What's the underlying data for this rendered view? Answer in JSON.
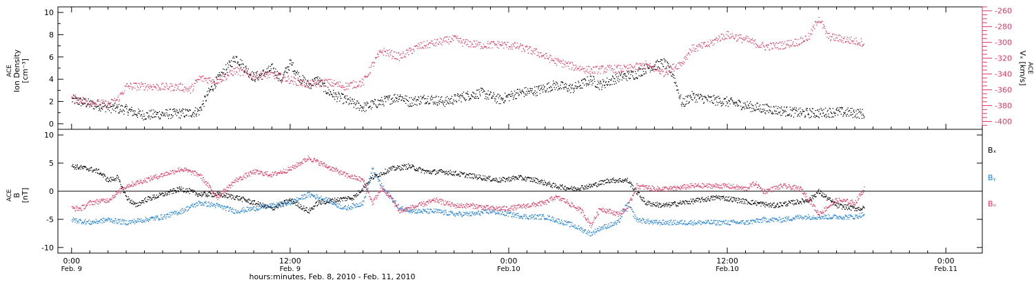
{
  "chart_data": [
    {
      "type": "scatter",
      "panel": "top",
      "ylabel_left_lines": [
        "ACE",
        "Ion Density",
        "[cm⁻³]"
      ],
      "ylabel_right_lines": [
        "ACE",
        "Vₓ [km/s]"
      ],
      "ylim_left": [
        -0.5,
        10.5
      ],
      "ylim_right": [
        -410,
        -255
      ],
      "yticks_left": [
        0,
        2,
        4,
        6,
        8,
        10
      ],
      "yticks_right": [
        -260,
        -280,
        -300,
        -320,
        -340,
        -360,
        -380,
        -400
      ],
      "series": [
        {
          "name": "Ion Density",
          "axis": "left",
          "color": "#000000",
          "points": [
            [
              0,
              2.2
            ],
            [
              2,
              1.8
            ],
            [
              4,
              1.5
            ],
            [
              6,
              1.3
            ],
            [
              7,
              1.0
            ],
            [
              8,
              0.8
            ],
            [
              10,
              0.9
            ],
            [
              13,
              1.0
            ],
            [
              14,
              1.2
            ],
            [
              15,
              2.8
            ],
            [
              16,
              4.0
            ],
            [
              17,
              5.0
            ],
            [
              18,
              6.0
            ],
            [
              19,
              5.0
            ],
            [
              20,
              4.2
            ],
            [
              21,
              4.5
            ],
            [
              22,
              5.0
            ],
            [
              23,
              4.0
            ],
            [
              24,
              5.5
            ],
            [
              25,
              4.2
            ],
            [
              26,
              3.5
            ],
            [
              27,
              4.0
            ],
            [
              28,
              3.0
            ],
            [
              29,
              2.5
            ],
            [
              30,
              2.2
            ],
            [
              31,
              1.8
            ],
            [
              32,
              1.5
            ],
            [
              34,
              2.0
            ],
            [
              36,
              2.5
            ],
            [
              37,
              2.0
            ],
            [
              39,
              2.3
            ],
            [
              41,
              2.0
            ],
            [
              43,
              2.5
            ],
            [
              45,
              2.8
            ],
            [
              47,
              2.2
            ],
            [
              49,
              2.8
            ],
            [
              51,
              3.0
            ],
            [
              53,
              3.5
            ],
            [
              55,
              3.2
            ],
            [
              57,
              4.0
            ],
            [
              58,
              3.5
            ],
            [
              60,
              4.2
            ],
            [
              62,
              4.5
            ],
            [
              63,
              5.0
            ],
            [
              65,
              5.5
            ],
            [
              66,
              4.5
            ],
            [
              67,
              1.8
            ],
            [
              68,
              2.5
            ],
            [
              70,
              2.2
            ],
            [
              72,
              2.0
            ],
            [
              75,
              1.5
            ],
            [
              78,
              1.2
            ],
            [
              80,
              1.0
            ],
            [
              82,
              1.0
            ],
            [
              84,
              1.1
            ],
            [
              86,
              1.0
            ],
            [
              87,
              0.9
            ]
          ]
        },
        {
          "name": "Vx",
          "axis": "right",
          "color": "#e0365f",
          "points": [
            [
              0,
              -370
            ],
            [
              2,
              -375
            ],
            [
              4,
              -378
            ],
            [
              5,
              -372
            ],
            [
              6,
              -355
            ],
            [
              8,
              -355
            ],
            [
              10,
              -356
            ],
            [
              12,
              -356
            ],
            [
              13,
              -360
            ],
            [
              14,
              -345
            ],
            [
              16,
              -348
            ],
            [
              18,
              -335
            ],
            [
              20,
              -342
            ],
            [
              22,
              -340
            ],
            [
              24,
              -347
            ],
            [
              26,
              -353
            ],
            [
              28,
              -350
            ],
            [
              30,
              -355
            ],
            [
              32,
              -350
            ],
            [
              33,
              -328
            ],
            [
              34,
              -310
            ],
            [
              36,
              -318
            ],
            [
              38,
              -305
            ],
            [
              40,
              -300
            ],
            [
              42,
              -295
            ],
            [
              43,
              -300
            ],
            [
              45,
              -303
            ],
            [
              47,
              -302
            ],
            [
              49,
              -305
            ],
            [
              51,
              -312
            ],
            [
              53,
              -323
            ],
            [
              55,
              -330
            ],
            [
              57,
              -335
            ],
            [
              59,
              -333
            ],
            [
              61,
              -333
            ],
            [
              63,
              -328
            ],
            [
              65,
              -338
            ],
            [
              67,
              -325
            ],
            [
              68,
              -308
            ],
            [
              70,
              -302
            ],
            [
              71,
              -294
            ],
            [
              72,
              -290
            ],
            [
              74,
              -296
            ],
            [
              76,
              -305
            ],
            [
              78,
              -303
            ],
            [
              80,
              -298
            ],
            [
              81,
              -292
            ],
            [
              82,
              -268
            ],
            [
              83,
              -292
            ],
            [
              85,
              -296
            ],
            [
              87,
              -300
            ]
          ]
        }
      ]
    },
    {
      "type": "scatter",
      "panel": "bottom",
      "ylabel_left_lines": [
        "ACE",
        "B",
        "[nT]"
      ],
      "ylim": [
        -11,
        11
      ],
      "yticks": [
        -10,
        -5,
        0,
        5,
        10
      ],
      "legend_position": "right",
      "legend_entries": [
        "Bₓ",
        "Bᵧ",
        "Bᵤ"
      ],
      "series": [
        {
          "name": "Bx",
          "color": "#000000",
          "points": [
            [
              0,
              4.5
            ],
            [
              2,
              4.0
            ],
            [
              3,
              3.5
            ],
            [
              4,
              2.0
            ],
            [
              5,
              2.5
            ],
            [
              6,
              -1.0
            ],
            [
              7,
              -2.5
            ],
            [
              8,
              -1.5
            ],
            [
              10,
              -0.5
            ],
            [
              12,
              0.5
            ],
            [
              14,
              -0.5
            ],
            [
              16,
              -0.5
            ],
            [
              18,
              -1.0
            ],
            [
              20,
              -2.0
            ],
            [
              22,
              -3.0
            ],
            [
              24,
              -1.5
            ],
            [
              26,
              -3.5
            ],
            [
              27,
              -2.0
            ],
            [
              29,
              -1.5
            ],
            [
              31,
              -1.0
            ],
            [
              33,
              2.5
            ],
            [
              35,
              4.0
            ],
            [
              37,
              4.5
            ],
            [
              39,
              3.5
            ],
            [
              41,
              3.5
            ],
            [
              43,
              3.0
            ],
            [
              45,
              2.5
            ],
            [
              47,
              2.0
            ],
            [
              49,
              2.5
            ],
            [
              51,
              2.0
            ],
            [
              53,
              1.0
            ],
            [
              55,
              0.5
            ],
            [
              57,
              1.0
            ],
            [
              59,
              2.0
            ],
            [
              61,
              2.0
            ],
            [
              62,
              0.0
            ],
            [
              63,
              -2.0
            ],
            [
              65,
              -2.5
            ],
            [
              67,
              -2.0
            ],
            [
              69,
              -1.5
            ],
            [
              71,
              -1.0
            ],
            [
              73,
              -1.5
            ],
            [
              75,
              -2.0
            ],
            [
              77,
              -2.5
            ],
            [
              79,
              -2.0
            ],
            [
              81,
              -1.5
            ],
            [
              82,
              0.0
            ],
            [
              84,
              -2.5
            ],
            [
              86,
              -3.0
            ],
            [
              87,
              -3.0
            ]
          ]
        },
        {
          "name": "By",
          "color": "#1e7fd6",
          "points": [
            [
              0,
              -5.0
            ],
            [
              2,
              -5.5
            ],
            [
              4,
              -5.0
            ],
            [
              6,
              -5.5
            ],
            [
              8,
              -5.0
            ],
            [
              10,
              -4.5
            ],
            [
              12,
              -3.5
            ],
            [
              14,
              -2.0
            ],
            [
              16,
              -2.5
            ],
            [
              18,
              -3.5
            ],
            [
              20,
              -3.0
            ],
            [
              22,
              -2.5
            ],
            [
              24,
              -2.0
            ],
            [
              26,
              -0.5
            ],
            [
              28,
              -1.5
            ],
            [
              30,
              -3.0
            ],
            [
              32,
              -2.0
            ],
            [
              33,
              4.0
            ],
            [
              34,
              1.0
            ],
            [
              36,
              -3.0
            ],
            [
              38,
              -3.5
            ],
            [
              40,
              -3.5
            ],
            [
              42,
              -4.0
            ],
            [
              44,
              -4.0
            ],
            [
              46,
              -3.5
            ],
            [
              48,
              -4.0
            ],
            [
              50,
              -4.5
            ],
            [
              52,
              -4.5
            ],
            [
              54,
              -5.5
            ],
            [
              55,
              -6.0
            ],
            [
              57,
              -7.5
            ],
            [
              58,
              -6.5
            ],
            [
              60,
              -5.5
            ],
            [
              61,
              -2.0
            ],
            [
              62,
              -5.0
            ],
            [
              64,
              -5.5
            ],
            [
              66,
              -5.5
            ],
            [
              68,
              -5.5
            ],
            [
              70,
              -5.5
            ],
            [
              72,
              -5.5
            ],
            [
              74,
              -5.5
            ],
            [
              76,
              -5.0
            ],
            [
              78,
              -5.0
            ],
            [
              80,
              -4.5
            ],
            [
              82,
              -4.5
            ],
            [
              84,
              -4.5
            ],
            [
              86,
              -4.5
            ],
            [
              87,
              -4.0
            ]
          ]
        },
        {
          "name": "Bz",
          "color": "#e0365f",
          "points": [
            [
              0,
              -3.0
            ],
            [
              1,
              -3.0
            ],
            [
              2,
              -2.0
            ],
            [
              4,
              -1.5
            ],
            [
              6,
              1.0
            ],
            [
              8,
              2.0
            ],
            [
              10,
              3.0
            ],
            [
              12,
              4.0
            ],
            [
              14,
              3.0
            ],
            [
              15,
              1.0
            ],
            [
              16,
              -1.0
            ],
            [
              17,
              0.5
            ],
            [
              18,
              2.0
            ],
            [
              20,
              3.5
            ],
            [
              22,
              3.0
            ],
            [
              24,
              4.0
            ],
            [
              26,
              6.0
            ],
            [
              28,
              4.5
            ],
            [
              30,
              3.0
            ],
            [
              32,
              2.0
            ],
            [
              33,
              -2.0
            ],
            [
              34,
              0.5
            ],
            [
              35,
              -1.0
            ],
            [
              36,
              -3.5
            ],
            [
              38,
              -2.5
            ],
            [
              40,
              -1.5
            ],
            [
              42,
              -2.5
            ],
            [
              44,
              -2.5
            ],
            [
              46,
              -3.0
            ],
            [
              48,
              -3.0
            ],
            [
              50,
              -2.5
            ],
            [
              52,
              -2.0
            ],
            [
              53,
              -1.0
            ],
            [
              54,
              -1.5
            ],
            [
              56,
              -3.5
            ],
            [
              57,
              -6.0
            ],
            [
              58,
              -3.0
            ],
            [
              60,
              -4.0
            ],
            [
              61,
              -3.0
            ],
            [
              62,
              1.0
            ],
            [
              64,
              0.5
            ],
            [
              66,
              0.5
            ],
            [
              68,
              1.0
            ],
            [
              70,
              1.0
            ],
            [
              72,
              1.0
            ],
            [
              74,
              0.5
            ],
            [
              75,
              1.5
            ],
            [
              76,
              0.0
            ],
            [
              78,
              1.0
            ],
            [
              80,
              0.5
            ],
            [
              81,
              -1.5
            ],
            [
              82,
              -4.0
            ],
            [
              84,
              -1.5
            ],
            [
              86,
              -2.0
            ],
            [
              87,
              0.5
            ]
          ]
        }
      ]
    }
  ],
  "x_axis": {
    "range_hours": [
      -1.5,
      100
    ],
    "ticks": [
      {
        "hour": 0,
        "time": "0:00",
        "day": "Feb. 9"
      },
      {
        "hour": 24,
        "time": "12:00",
        "day": "Feb. 9"
      },
      {
        "hour": 48,
        "time": "0:00",
        "day": "Feb.10"
      },
      {
        "hour": 72,
        "time": "12:00",
        "day": "Feb.10"
      },
      {
        "hour": 96,
        "time": "0:00",
        "day": "Feb.11"
      }
    ],
    "title": "hours:minutes, Feb.  8, 2010 - Feb. 11, 2010"
  }
}
